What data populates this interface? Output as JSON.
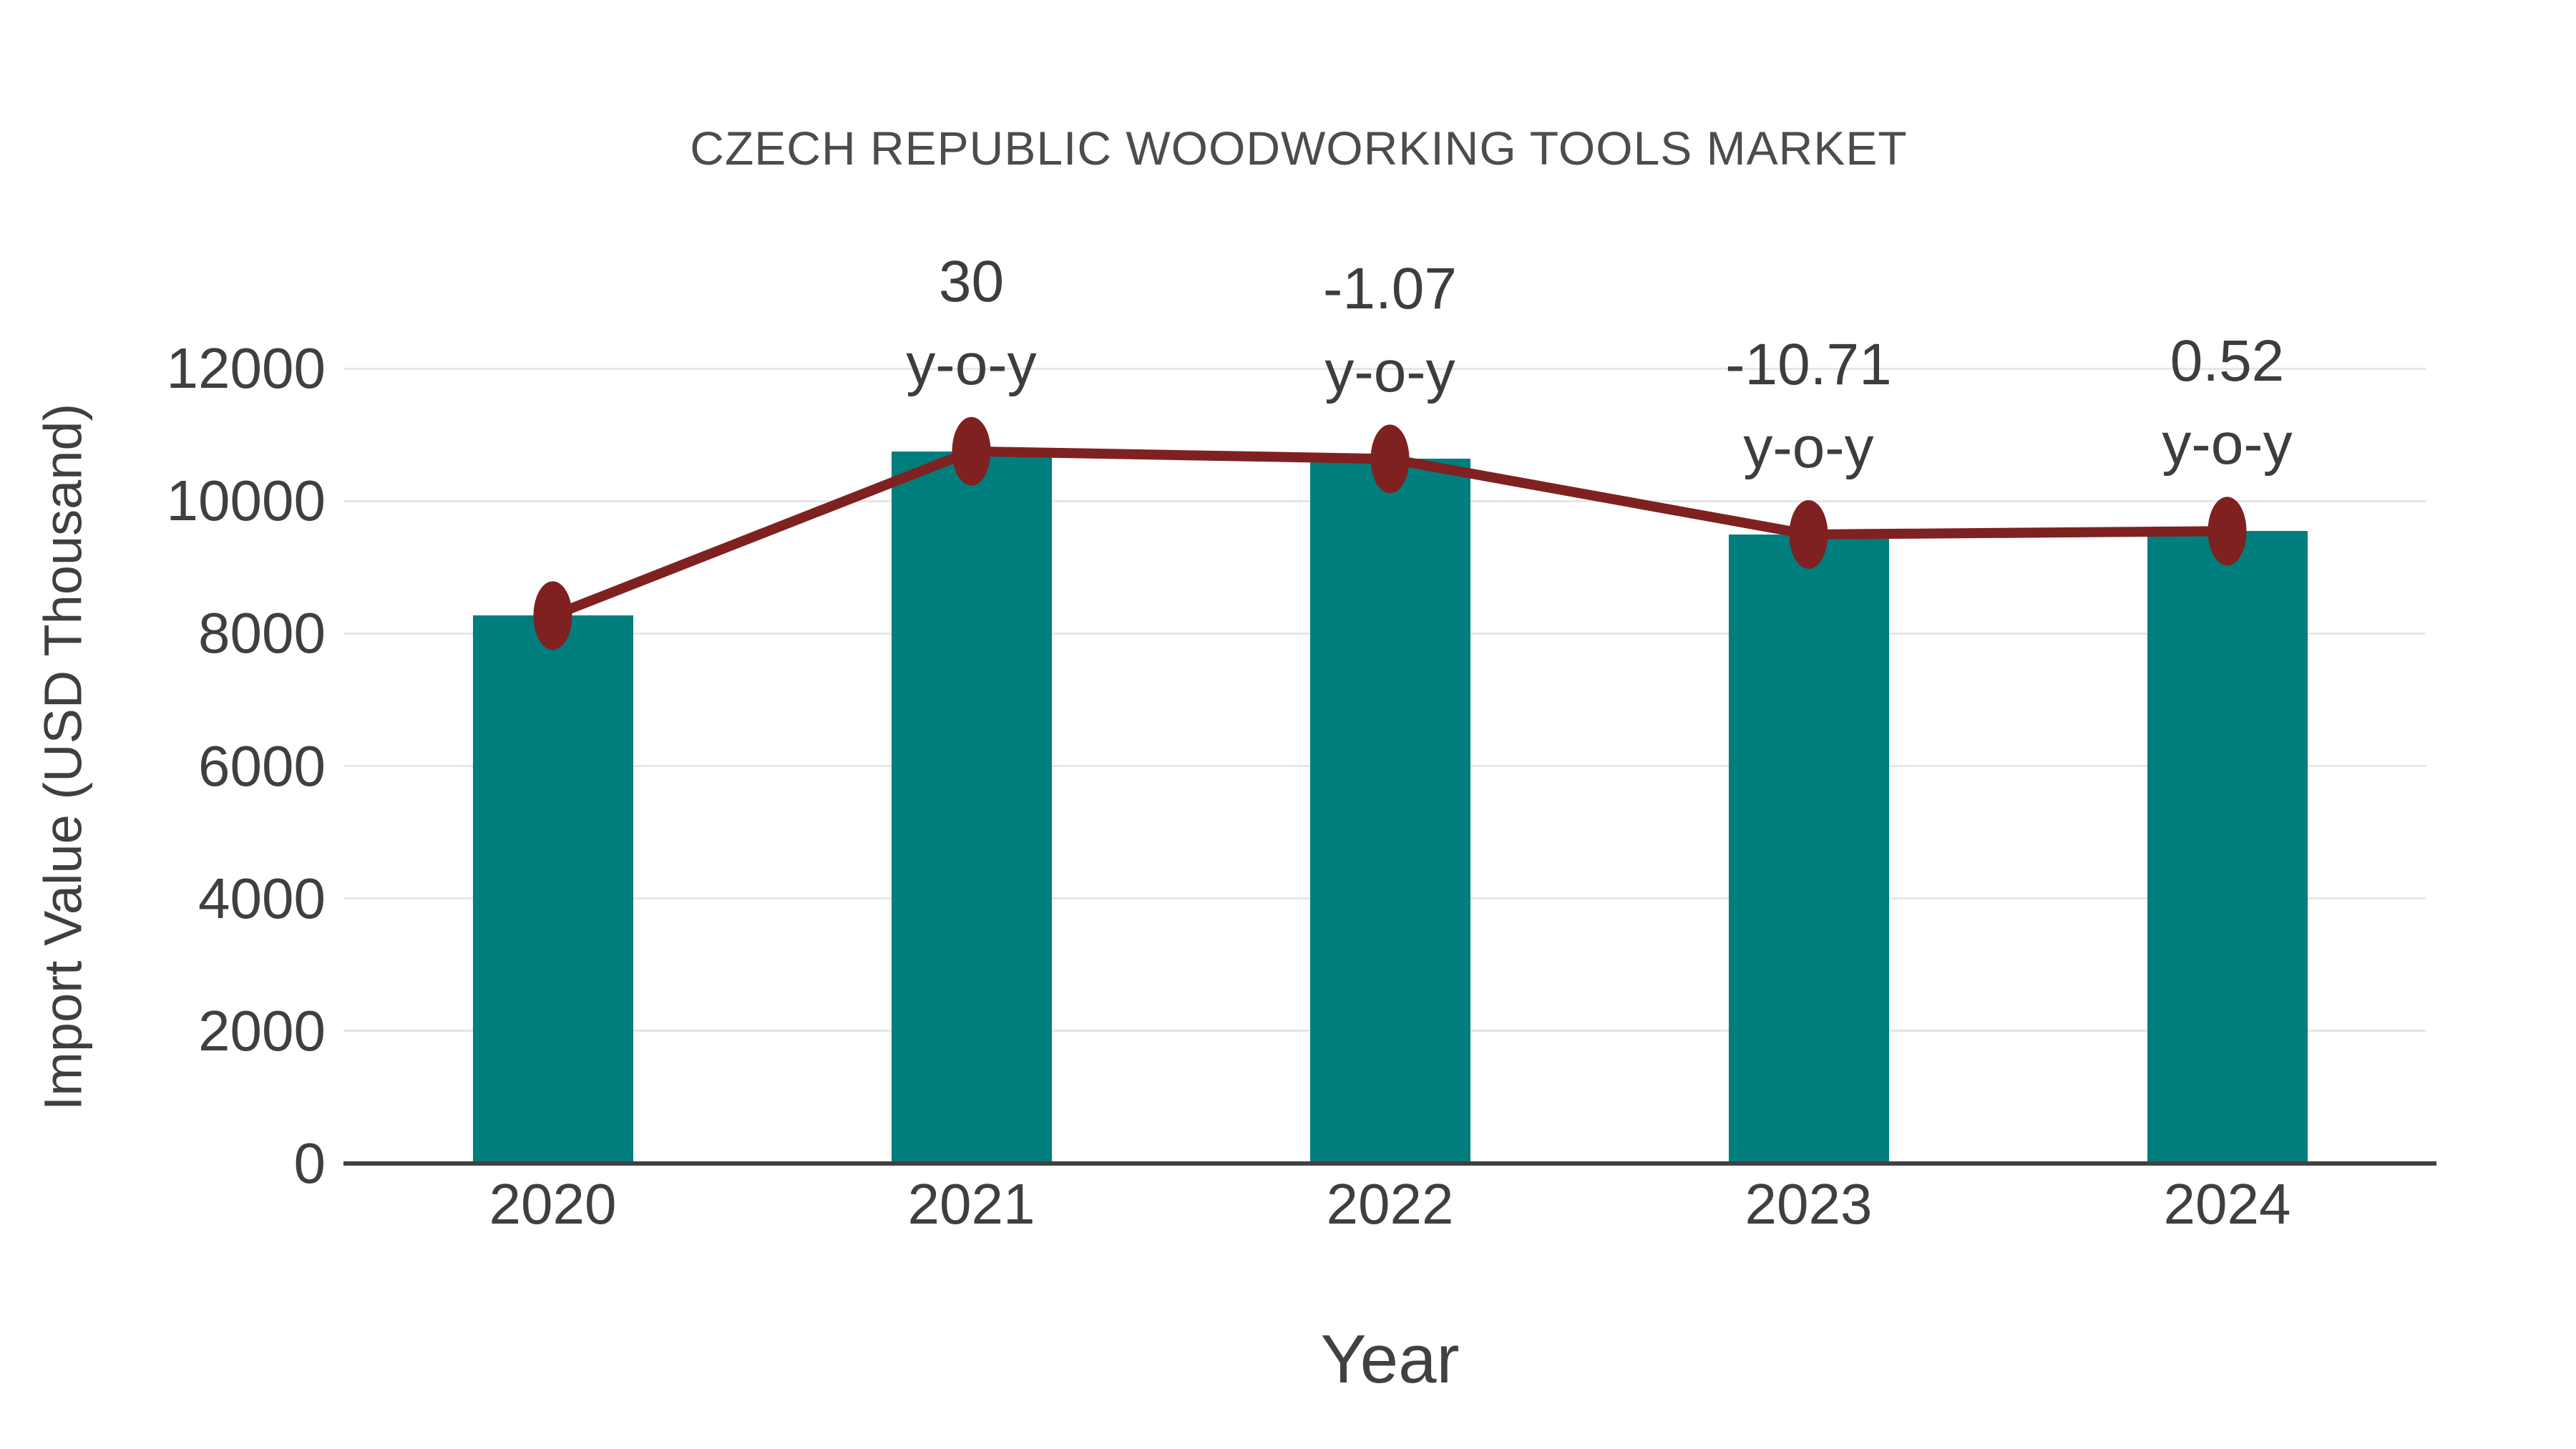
{
  "chart_data": {
    "type": "bar",
    "title": "CZECH REPUBLIC WOODWORKING TOOLS MARKET",
    "xlabel": "Year",
    "ylabel": "Import Value (USD Thousand)",
    "categories": [
      "2020",
      "2021",
      "2022",
      "2023",
      "2024"
    ],
    "series": [
      {
        "name": "Import Value bars",
        "type": "bar",
        "color": "#007e7e",
        "values": [
          8270,
          10750,
          10635,
          9495,
          9545
        ]
      },
      {
        "name": "Import Value trend line",
        "type": "line",
        "color": "#7f2121",
        "values": [
          8270,
          10750,
          10635,
          9495,
          9545
        ]
      }
    ],
    "annotations": [
      {
        "category": "2021",
        "lines": [
          "30",
          "y-o-y"
        ]
      },
      {
        "category": "2022",
        "lines": [
          "-1.07",
          "y-o-y"
        ]
      },
      {
        "category": "2023",
        "lines": [
          "-10.71",
          "y-o-y"
        ]
      },
      {
        "category": "2024",
        "lines": [
          "0.52",
          "y-o-y"
        ]
      }
    ],
    "yticks": [
      0,
      2000,
      4000,
      6000,
      8000,
      10000,
      12000
    ],
    "ylim": [
      0,
      12400
    ],
    "grid": true,
    "legend": "none",
    "colors": {
      "bar": "#007e7e",
      "line": "#7f2121",
      "marker": "#7f2121",
      "text": "#3f3f3f",
      "title": "#4c4c4c",
      "gridline": "#e6e6e6",
      "axis": "#404040"
    }
  }
}
